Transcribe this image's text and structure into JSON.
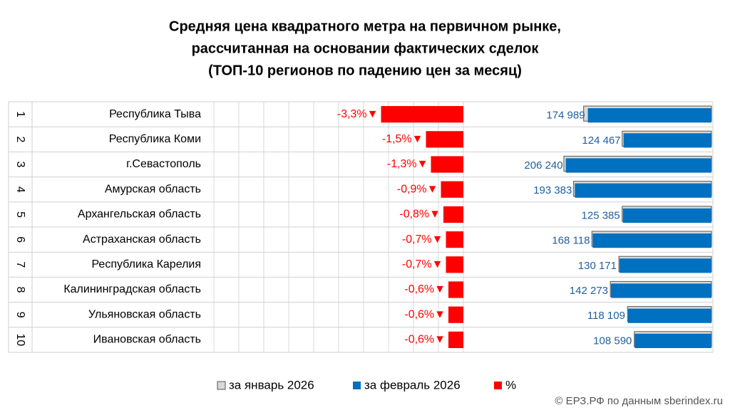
{
  "chart_data": {
    "type": "bar",
    "title": [
      "Средняя цена квадратного метра на первичном рынке,",
      "рассчитанная на основании фактических сделок",
      "(ТОП-10 регионов по падению цен за месяц)"
    ],
    "row_numbers": [
      "1",
      "2",
      "3",
      "4",
      "5",
      "6",
      "7",
      "8",
      "9",
      "10"
    ],
    "categories": [
      "Республика Тыва",
      "Республика Коми",
      "г.Севастополь",
      "Амурская область",
      "Архангельская область",
      "Астраханская область",
      "Республика Карелия",
      "Калининградская область",
      "Ульяновская область",
      "Ивановская область"
    ],
    "series": [
      {
        "name": "%",
        "color": "#ff0000",
        "values": [
          -3.3,
          -1.5,
          -1.3,
          -0.9,
          -0.8,
          -0.7,
          -0.7,
          -0.6,
          -0.6,
          -0.6
        ],
        "value_labels": [
          "-3,3%▼",
          "-1,5%▼",
          "-1,3%▼",
          "-0,9%▼",
          "-0,8%▼",
          "-0,7%▼",
          "-0,7%▼",
          "-0,6%▼",
          "-0,6%▼",
          "-0,6%▼"
        ]
      },
      {
        "name": "за январь 2026",
        "color": "#d9d9d9",
        "axis": "x2",
        "values": [
          180960,
          126360,
          208960,
          195140,
          126400,
          169300,
          131090,
          143130,
          118820,
          109250
        ]
      },
      {
        "name": "за февраль 2026",
        "color": "#0070c0",
        "axis": "x2",
        "values": [
          174989,
          124467,
          206240,
          193383,
          125385,
          168118,
          130171,
          142273,
          118109,
          108590
        ],
        "value_labels": [
          "174 989",
          "124 467",
          "206 240",
          "193 383",
          "125 385",
          "168 118",
          "130 171",
          "142 273",
          "118 109",
          "108 590"
        ]
      }
    ],
    "xlim": [
      -10,
      0
    ],
    "xticks": [
      -10,
      -9,
      -8,
      -7,
      -6,
      -5,
      -4,
      -3,
      -2,
      -1,
      0
    ],
    "x2lim": [
      0,
      220000
    ],
    "grid": true,
    "legend": "bottom",
    "source": "© ЕРЗ.РФ по данным sberindex.ru"
  }
}
